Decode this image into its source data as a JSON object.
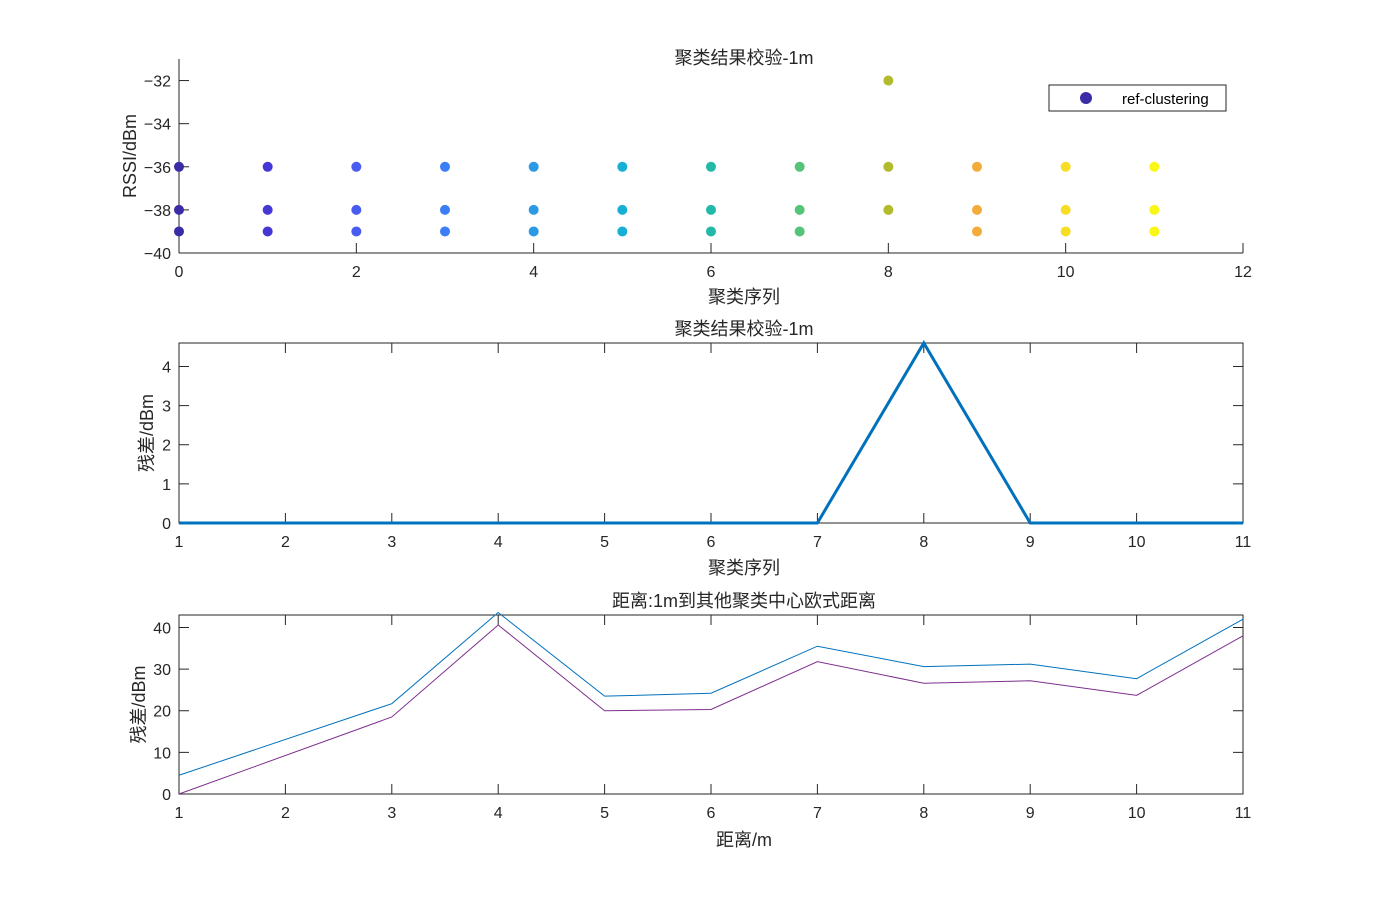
{
  "chart_data": [
    {
      "type": "scatter",
      "title": "聚类结果校验-1m",
      "xlabel": "聚类序列",
      "ylabel": "RSSI/dBm",
      "xlim": [
        0,
        12
      ],
      "ylim": [
        -40,
        -31
      ],
      "xticks": [
        0,
        2,
        4,
        6,
        8,
        10,
        12
      ],
      "yticks": [
        -40,
        -38,
        -36,
        -34,
        -32
      ],
      "grid": false,
      "legend": {
        "position": "top-right",
        "entries": [
          "ref-clustering"
        ]
      },
      "series": [
        {
          "name": "ref-clustering",
          "points": [
            {
              "x": 0,
              "y": -36
            },
            {
              "x": 0,
              "y": -38
            },
            {
              "x": 0,
              "y": -39
            },
            {
              "x": 1,
              "y": -36
            },
            {
              "x": 1,
              "y": -38
            },
            {
              "x": 1,
              "y": -39
            },
            {
              "x": 2,
              "y": -36
            },
            {
              "x": 2,
              "y": -38
            },
            {
              "x": 2,
              "y": -39
            },
            {
              "x": 3,
              "y": -36
            },
            {
              "x": 3,
              "y": -38
            },
            {
              "x": 3,
              "y": -39
            },
            {
              "x": 4,
              "y": -36
            },
            {
              "x": 4,
              "y": -38
            },
            {
              "x": 4,
              "y": -39
            },
            {
              "x": 5,
              "y": -36
            },
            {
              "x": 5,
              "y": -38
            },
            {
              "x": 5,
              "y": -39
            },
            {
              "x": 6,
              "y": -36
            },
            {
              "x": 6,
              "y": -38
            },
            {
              "x": 6,
              "y": -39
            },
            {
              "x": 7,
              "y": -36
            },
            {
              "x": 7,
              "y": -38
            },
            {
              "x": 7,
              "y": -39
            },
            {
              "x": 8,
              "y": -32
            },
            {
              "x": 8,
              "y": -36
            },
            {
              "x": 8,
              "y": -38
            },
            {
              "x": 9,
              "y": -36
            },
            {
              "x": 9,
              "y": -38
            },
            {
              "x": 9,
              "y": -39
            },
            {
              "x": 10,
              "y": -36
            },
            {
              "x": 10,
              "y": -38
            },
            {
              "x": 10,
              "y": -39
            },
            {
              "x": 11,
              "y": -36
            },
            {
              "x": 11,
              "y": -38
            },
            {
              "x": 11,
              "y": -39
            }
          ]
        }
      ],
      "cluster_colors": [
        "#3a2ba6",
        "#4537d6",
        "#4a5cf0",
        "#3c7ef6",
        "#2a99e6",
        "#18afd4",
        "#22b9a8",
        "#56c478",
        "#b2bb2e",
        "#f3ac3a",
        "#f8dd25",
        "#f9f717"
      ],
      "legend_marker_color": "#3a2ba6"
    },
    {
      "type": "line",
      "title": "聚类结果校验-1m",
      "xlabel": "聚类序列",
      "ylabel": "残差/dBm",
      "xlim": [
        1,
        11
      ],
      "ylim": [
        0,
        4.6
      ],
      "xticks": [
        1,
        2,
        3,
        4,
        5,
        6,
        7,
        8,
        9,
        10,
        11
      ],
      "yticks": [
        0,
        1,
        2,
        3,
        4
      ],
      "grid": false,
      "series": [
        {
          "x": [
            1,
            2,
            3,
            4,
            5,
            6,
            7,
            8,
            9,
            10,
            11
          ],
          "values": [
            0,
            0,
            0,
            0,
            0,
            0,
            0,
            4.6,
            0,
            0,
            0
          ],
          "color": "#0072bd",
          "width": 3
        }
      ]
    },
    {
      "type": "line",
      "title": "距离:1m到其他聚类中心欧式距离",
      "xlabel": "距离/m",
      "ylabel": "残差/dBm",
      "xlim": [
        1,
        11
      ],
      "ylim": [
        0,
        43
      ],
      "xticks": [
        1,
        2,
        3,
        4,
        5,
        6,
        7,
        8,
        9,
        10,
        11
      ],
      "yticks": [
        0,
        10,
        20,
        30,
        40
      ],
      "grid": false,
      "series": [
        {
          "x": [
            1,
            3,
            4,
            5,
            6,
            7,
            8,
            9,
            10,
            11
          ],
          "values": [
            4.5,
            21.7,
            43.6,
            23.5,
            24.2,
            35.5,
            30.6,
            31.2,
            27.7,
            42.0
          ],
          "color": "#0072bd",
          "width": 1
        },
        {
          "x": [
            1,
            3,
            4,
            5,
            6,
            7,
            8,
            9,
            10,
            11
          ],
          "values": [
            0.0,
            18.5,
            40.6,
            20.0,
            20.3,
            31.8,
            26.6,
            27.2,
            23.7,
            38.0
          ],
          "color": "#7e2f8e",
          "width": 1
        }
      ]
    }
  ]
}
